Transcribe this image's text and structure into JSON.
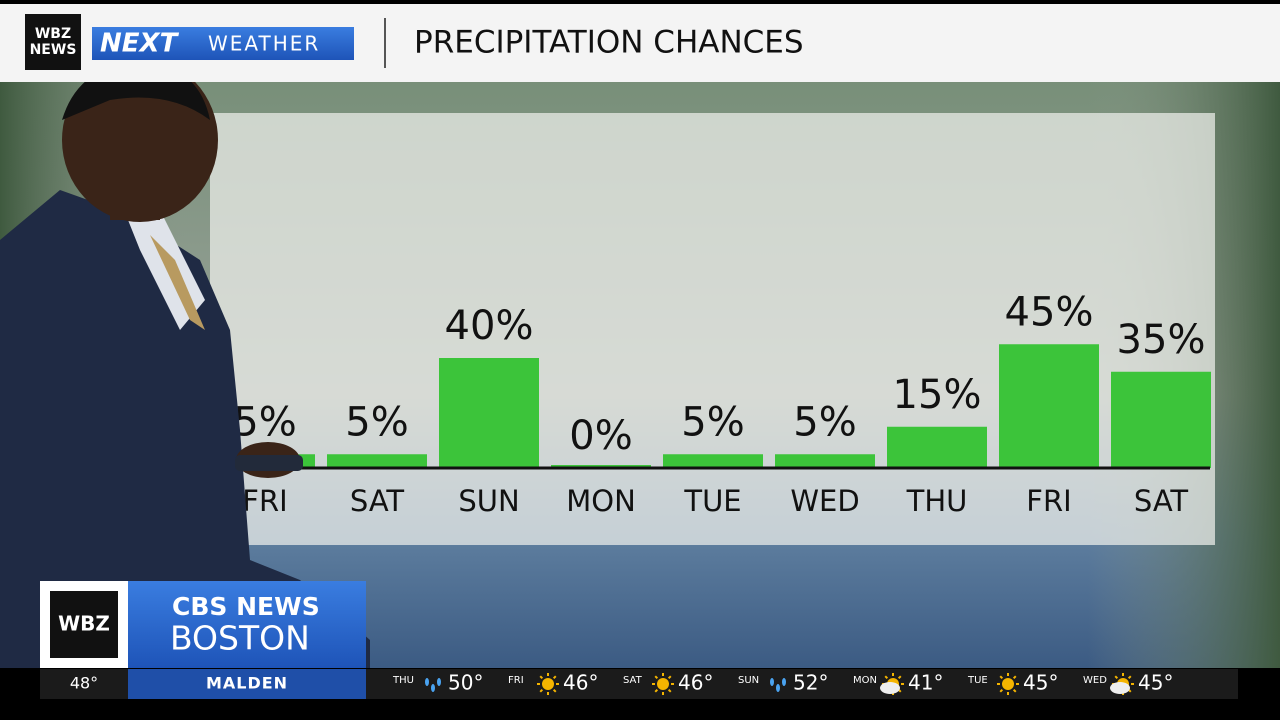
{
  "header": {
    "logo": "WBZ NEWS",
    "brand_a": "NEXT",
    "brand_b": "WEATHER",
    "title": "PRECIPITATION CHANCES"
  },
  "chart_data": {
    "type": "bar",
    "categories": [
      "FRI",
      "SAT",
      "SUN",
      "MON",
      "TUE",
      "WED",
      "THU",
      "FRI",
      "SAT"
    ],
    "values": [
      5,
      5,
      40,
      0,
      5,
      5,
      15,
      45,
      35
    ],
    "value_labels": [
      "5%",
      "5%",
      "40%",
      "0%",
      "5%",
      "5%",
      "15%",
      "45%",
      "35%"
    ],
    "color": "#3cc43a"
  },
  "lower_third": {
    "station": "WBZ",
    "network": "CBS NEWS",
    "city": "BOSTON"
  },
  "ticker": {
    "current_temp": "48°",
    "location": "MALDEN",
    "forecast": [
      {
        "day": "THU",
        "icon": "rain",
        "temp": "50°"
      },
      {
        "day": "FRI",
        "icon": "sun",
        "temp": "46°"
      },
      {
        "day": "SAT",
        "icon": "sun",
        "temp": "46°"
      },
      {
        "day": "SUN",
        "icon": "rain",
        "temp": "52°"
      },
      {
        "day": "MON",
        "icon": "cloud-sun",
        "temp": "41°"
      },
      {
        "day": "TUE",
        "icon": "sun",
        "temp": "45°"
      },
      {
        "day": "WED",
        "icon": "cloud-sun",
        "temp": "45°"
      }
    ]
  }
}
